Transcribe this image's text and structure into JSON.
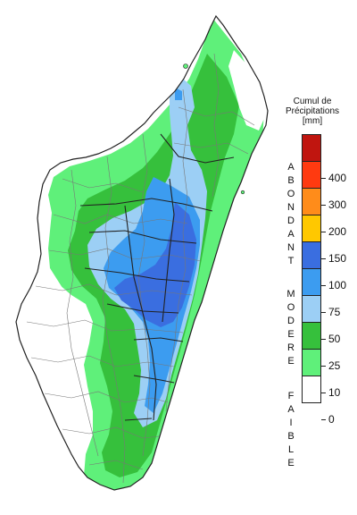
{
  "legend": {
    "title_line1": "Cumul de",
    "title_line2": "Précipitations",
    "title_line3": "[mm]",
    "categories": [
      {
        "label": "ABONDANT",
        "letters": [
          "A",
          "B",
          "O",
          "N",
          "D",
          "A",
          "N",
          "T"
        ]
      },
      {
        "label": "MODERE",
        "letters": [
          "M",
          "O",
          "D",
          "E",
          "R",
          "E"
        ]
      },
      {
        "label": "FAIBLE",
        "letters": [
          "F",
          "A",
          "I",
          "B",
          "L",
          "E"
        ]
      }
    ],
    "classes": [
      {
        "lower": 400,
        "upper": null,
        "color": "#c0150f"
      },
      {
        "lower": 300,
        "upper": 400,
        "color": "#ff3a10"
      },
      {
        "lower": 200,
        "upper": 300,
        "color": "#ff8c1a"
      },
      {
        "lower": 150,
        "upper": 200,
        "color": "#ffc800"
      },
      {
        "lower": 100,
        "upper": 150,
        "color": "#3a6ee0"
      },
      {
        "lower": 75,
        "upper": 100,
        "color": "#3c9cf0"
      },
      {
        "lower": 50,
        "upper": 75,
        "color": "#9ccff5"
      },
      {
        "lower": 25,
        "upper": 50,
        "color": "#36c03c"
      },
      {
        "lower": 10,
        "upper": 25,
        "color": "#5ff07a"
      },
      {
        "lower": 0,
        "upper": 10,
        "color": "#ffffff"
      }
    ],
    "ticks": [
      "400",
      "300",
      "200",
      "150",
      "100",
      "75",
      "50",
      "25",
      "10",
      "0"
    ]
  },
  "map": {
    "region": "Madagascar",
    "palette": {
      "land_low": "#ffffff",
      "faible_10": "#5ff07a",
      "faible_25": "#36c03c",
      "modere_50": "#9ccff5",
      "modere_75": "#3c9cf0",
      "modere_100": "#3a6ee0",
      "boundary": "#333333"
    }
  }
}
